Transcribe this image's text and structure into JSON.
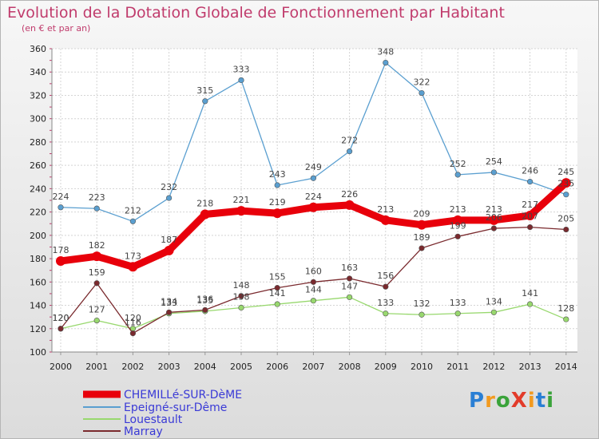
{
  "title": "Evolution de la Dotation Globale de Fonctionnement par Habitant",
  "subtitle": "(en € et par an)",
  "logo": {
    "text": "ProXiti",
    "letters": [
      "P",
      "r",
      "o",
      "X",
      "i",
      "t",
      "i"
    ],
    "colors": [
      "#2a7fd4",
      "#f29a1f",
      "#3aa33a",
      "#e23b2a",
      "#f29a1f",
      "#2a7fd4",
      "#3aa33a"
    ]
  },
  "chart_data": {
    "type": "line",
    "title": "Evolution de la Dotation Globale de Fonctionnement par Habitant",
    "subtitle": "(en € et par an)",
    "x": [
      2000,
      2001,
      2002,
      2003,
      2004,
      2005,
      2006,
      2007,
      2008,
      2009,
      2010,
      2011,
      2012,
      2013,
      2014
    ],
    "ylim": [
      100,
      360
    ],
    "yticks": [
      100,
      120,
      140,
      160,
      180,
      200,
      220,
      240,
      260,
      280,
      300,
      320,
      340,
      360
    ],
    "grid": true,
    "legend": "bottom-left",
    "series": [
      {
        "name": "CHEMILLé-SUR-DèME",
        "color": "#e8000b",
        "width": 9,
        "values": [
          178,
          182,
          173,
          187,
          218,
          221,
          219,
          224,
          226,
          213,
          209,
          213,
          213,
          217,
          245
        ]
      },
      {
        "name": "Epeigné-sur-Dême",
        "color": "#5a9fd0",
        "width": 1.3,
        "values": [
          224,
          223,
          212,
          232,
          315,
          333,
          243,
          249,
          272,
          348,
          322,
          252,
          254,
          246,
          235
        ]
      },
      {
        "name": "Louestault",
        "color": "#98d86e",
        "width": 1.3,
        "values": [
          120,
          127,
          120,
          133,
          135,
          138,
          141,
          144,
          147,
          133,
          132,
          133,
          134,
          141,
          128
        ]
      },
      {
        "name": "Marray",
        "color": "#7a2a2e",
        "width": 1.3,
        "values": [
          120,
          159,
          116,
          134,
          136,
          148,
          155,
          160,
          163,
          156,
          189,
          199,
          206,
          207,
          205
        ]
      }
    ]
  }
}
